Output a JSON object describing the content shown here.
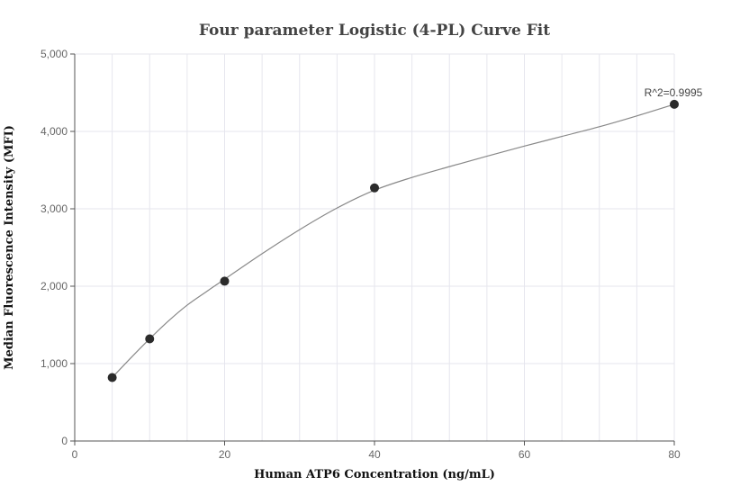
{
  "chart_data": {
    "type": "scatter",
    "title": "Four parameter Logistic (4-PL) Curve Fit",
    "xlabel": "Human ATP6 Concentration (ng/mL)",
    "ylabel": "Median Fluorescence Intensity (MFI)",
    "xlim": [
      0,
      80
    ],
    "ylim": [
      0,
      5000
    ],
    "x_ticks": [
      0,
      20,
      40,
      60,
      80
    ],
    "y_ticks": [
      0,
      1000,
      2000,
      3000,
      4000,
      5000
    ],
    "x_tick_labels": [
      "0",
      "20",
      "40",
      "60",
      "80"
    ],
    "y_tick_labels": [
      "0",
      "1,000",
      "2,000",
      "3,000",
      "4,000",
      "5,000"
    ],
    "grid": true,
    "points": [
      {
        "x": 5,
        "y": 820
      },
      {
        "x": 10,
        "y": 1320
      },
      {
        "x": 20,
        "y": 2065
      },
      {
        "x": 40,
        "y": 3270
      },
      {
        "x": 80,
        "y": 4350
      }
    ],
    "fit_curve": {
      "model": "4-PL",
      "x": [
        5,
        7.5,
        10,
        12.5,
        15,
        17.5,
        20,
        25,
        30,
        35,
        40,
        45,
        50,
        55,
        60,
        65,
        70,
        75,
        80
      ],
      "y": [
        820,
        1075,
        1320,
        1550,
        1755,
        1925,
        2090,
        2420,
        2730,
        3010,
        3240,
        3405,
        3545,
        3680,
        3810,
        3935,
        4060,
        4200,
        4350
      ]
    },
    "annotation": "R^2=0.9995",
    "colors": {
      "point": "#2b2b2b",
      "curve": "#888888",
      "grid": "#e6e6ee",
      "axis": "#555555"
    }
  }
}
